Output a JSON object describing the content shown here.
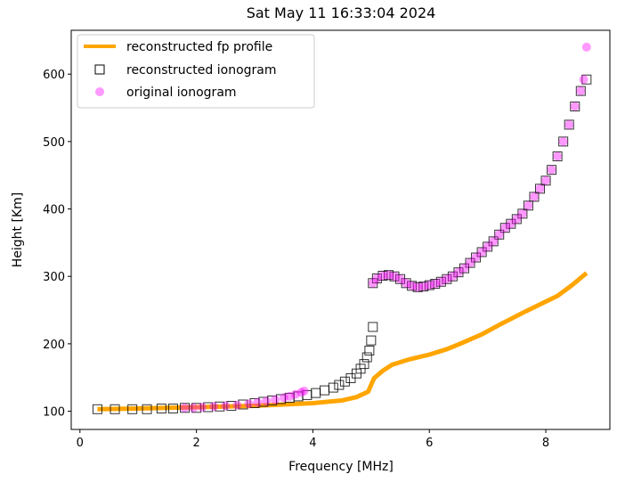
{
  "chart_data": {
    "type": "scatter",
    "title": "Sat May 11 16:33:04 2024",
    "xlabel": "Frequency [MHz]",
    "ylabel": "Height [Km]",
    "xlim": [
      -0.15,
      9.1
    ],
    "ylim": [
      73,
      665
    ],
    "xticks": [
      0,
      2,
      4,
      6,
      8
    ],
    "yticks": [
      100,
      200,
      300,
      400,
      500,
      600
    ],
    "grid": false,
    "legend_position": "top-left",
    "colors": {
      "profile": "#ffa500",
      "square_edge": "#000000",
      "original": "#ff00ff"
    },
    "series": [
      {
        "name": "reconstructed fp profile",
        "kind": "line",
        "x": [
          0.3,
          1,
          2,
          3,
          4,
          4.5,
          4.75,
          4.95,
          5.05,
          5.2,
          5.36,
          5.66,
          6.0,
          6.3,
          6.58,
          6.9,
          7.2,
          7.65,
          8.2,
          8.45,
          8.7
        ],
        "y": [
          103,
          104,
          106,
          108,
          112,
          116,
          121,
          129,
          149,
          160,
          169,
          177,
          184,
          192,
          202,
          214,
          228,
          248,
          271,
          287,
          305
        ]
      },
      {
        "name": "reconstructed ionogram",
        "kind": "square",
        "x": [
          0.3,
          0.6,
          0.9,
          1.15,
          1.4,
          1.6,
          1.8,
          2.0,
          2.2,
          2.4,
          2.6,
          2.8,
          3.0,
          3.15,
          3.3,
          3.45,
          3.6,
          3.75,
          3.9,
          4.05,
          4.2,
          4.35,
          4.45,
          4.55,
          4.65,
          4.75,
          4.82,
          4.88,
          4.93,
          4.97,
          5.0,
          5.03,
          5.03,
          5.1,
          5.2,
          5.3,
          5.4,
          5.5,
          5.6,
          5.7,
          5.8,
          5.9,
          6.0,
          6.1,
          6.2,
          6.3,
          6.4,
          6.5,
          6.6,
          6.7,
          6.8,
          6.9,
          7.0,
          7.1,
          7.2,
          7.3,
          7.4,
          7.5,
          7.6,
          7.7,
          7.8,
          7.9,
          8.0,
          8.1,
          8.2,
          8.3,
          8.4,
          8.5,
          8.6,
          8.7
        ],
        "y": [
          103,
          103,
          103,
          103,
          104,
          104,
          105,
          105,
          106,
          107,
          108,
          110,
          112,
          114,
          116,
          118,
          120,
          122,
          124,
          127,
          131,
          135,
          139,
          144,
          149,
          156,
          163,
          170,
          180,
          190,
          205,
          225,
          290,
          297,
          301,
          302,
          300,
          296,
          290,
          286,
          284,
          285,
          287,
          289,
          292,
          296,
          300,
          306,
          312,
          320,
          328,
          336,
          344,
          352,
          362,
          372,
          378,
          385,
          393,
          405,
          418,
          430,
          442,
          458,
          478,
          500,
          525,
          552,
          575,
          592
        ]
      },
      {
        "name": "original ionogram",
        "kind": "circle",
        "x": [
          1.8,
          1.95,
          2.1,
          2.3,
          2.5,
          2.7,
          2.9,
          3.05,
          3.2,
          3.35,
          3.5,
          3.6,
          3.7,
          3.8,
          3.85,
          5.03,
          5.1,
          5.2,
          5.3,
          5.4,
          5.5,
          5.6,
          5.7,
          5.8,
          5.9,
          6.0,
          6.1,
          6.2,
          6.3,
          6.4,
          6.5,
          6.6,
          6.7,
          6.8,
          6.9,
          7.0,
          7.1,
          7.2,
          7.3,
          7.4,
          7.5,
          7.6,
          7.7,
          7.8,
          7.9,
          8.0,
          8.1,
          8.2,
          8.3,
          8.4,
          8.5,
          8.6,
          8.65,
          8.7
        ],
        "y": [
          105,
          105,
          106,
          107,
          108,
          109,
          111,
          113,
          115,
          117,
          120,
          122,
          125,
          128,
          130,
          290,
          297,
          301,
          302,
          300,
          296,
          290,
          286,
          284,
          285,
          287,
          289,
          292,
          296,
          300,
          306,
          312,
          320,
          328,
          336,
          344,
          352,
          362,
          372,
          378,
          385,
          393,
          405,
          418,
          430,
          442,
          458,
          478,
          500,
          525,
          552,
          575,
          592,
          640
        ]
      }
    ]
  }
}
